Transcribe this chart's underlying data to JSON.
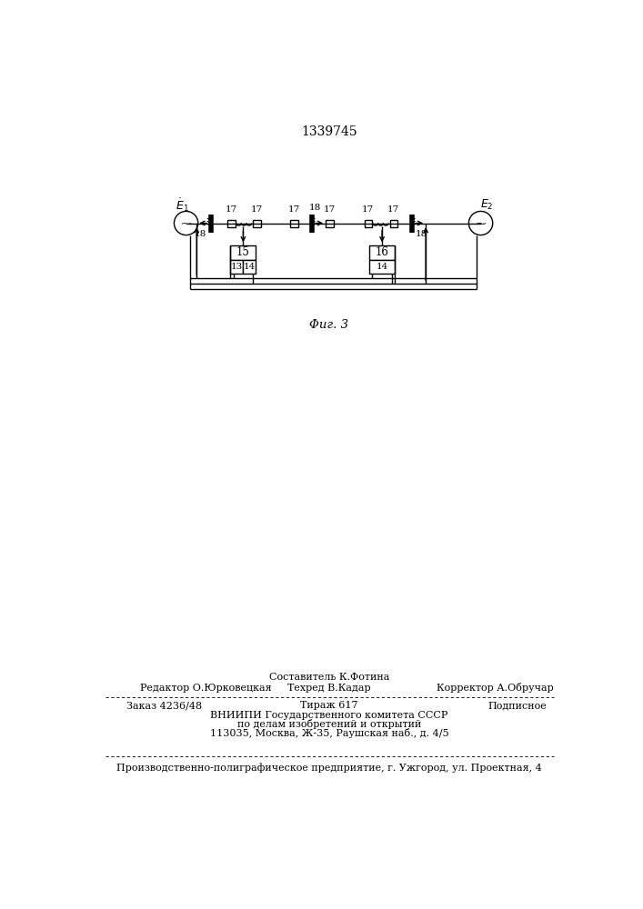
{
  "patent_number": "1339745",
  "fig_caption": "Φиг. 3",
  "background_color": "#ffffff",
  "line_color": "#000000",
  "footer": {
    "line1_center": "Составитель К.Фотина",
    "line2_left": "Редактор О.Юрковецкая",
    "line2_center": "Техред В.Кадар",
    "line2_right": "Корректор А.Обручар",
    "line3_left": "Заказ 4236/48",
    "line3_center": "Тираж 617",
    "line3_right": "Подписное",
    "line4": "ВНИИПИ Государственного комитета СССР",
    "line5": "по делам изобретений и открытий",
    "line6": "113035, Москва, Ж-35, Раушская наб., д. 4/5",
    "line7": "Производственно-полиграфическое предприятие, г. Ужгород, ул. Проектная, 4"
  }
}
